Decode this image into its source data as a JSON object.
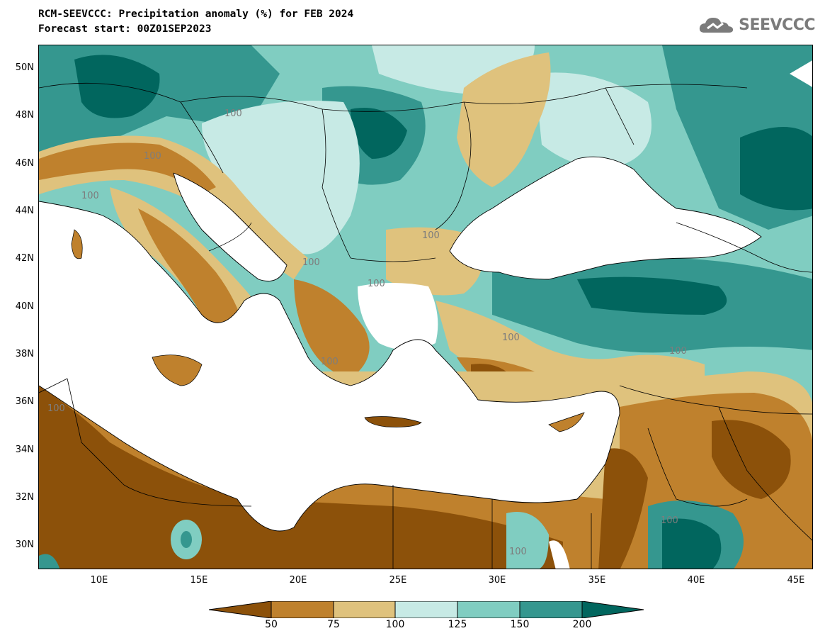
{
  "title": {
    "line1": "RCM-SEEVCCC: Precipitation anomaly (%) for FEB 2024",
    "line2": "Forecast start: 00Z01SEP2023"
  },
  "logo": {
    "text": "SEEVCCC",
    "icon": "cloud-icon"
  },
  "map": {
    "latitude_labels": [
      "50N",
      "48N",
      "46N",
      "44N",
      "42N",
      "40N",
      "38N",
      "36N",
      "34N",
      "32N",
      "30N"
    ],
    "longitude_labels": [
      "10E",
      "15E",
      "20E",
      "25E",
      "30E",
      "35E",
      "40E",
      "45E"
    ],
    "contour_labels": [
      "100",
      "100",
      "100",
      "100",
      "100",
      "100",
      "100",
      "100",
      "100",
      "100",
      "100",
      "100"
    ]
  },
  "colorbar": {
    "labels": [
      "50",
      "75",
      "100",
      "125",
      "150",
      "200"
    ],
    "colors": [
      "#8c510a",
      "#bf812d",
      "#dfc27d",
      "#c7eae5",
      "#80cdc1",
      "#35978f",
      "#01665e"
    ]
  }
}
